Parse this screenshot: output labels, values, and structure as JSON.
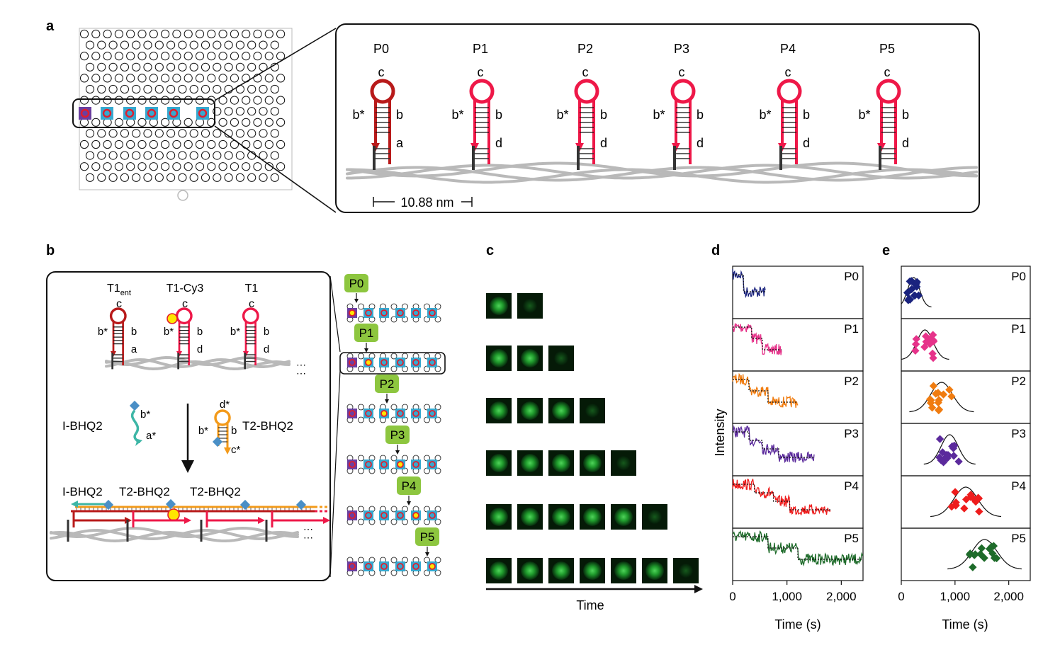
{
  "panel_letters": {
    "a": "a",
    "b": "b",
    "c": "c",
    "d": "d",
    "e": "e"
  },
  "panel_a": {
    "positions": [
      "P0",
      "P1",
      "P2",
      "P3",
      "P4",
      "P5"
    ],
    "loop_label": "c",
    "stem_left": "b*",
    "stem_right": "b",
    "tail_labels": [
      "a",
      "d",
      "d",
      "d",
      "d",
      "d"
    ],
    "scale_label": "10.88 nm"
  },
  "panel_b": {
    "hairpin_names": [
      "T1",
      "T1-Cy3",
      "T1"
    ],
    "hairpin_name_sub": "ent",
    "loop_label": "c",
    "stem_left": "b*",
    "stem_right": "b",
    "tails": [
      "a",
      "d",
      "d"
    ],
    "ellipsis": "⋯",
    "i_bhq2": {
      "name": "I-BHQ2",
      "top": "b*",
      "bottom": "a*"
    },
    "t2_bhq2": {
      "name": "T2-BHQ2",
      "loop": "d*",
      "left": "b*",
      "right": "b",
      "bottom": "c*"
    },
    "product_labels": [
      "I-BHQ2",
      "T2-BHQ2",
      "T2-BHQ2"
    ],
    "lattice_tags": [
      "P0",
      "P1",
      "P2",
      "P3",
      "P4",
      "P5"
    ]
  },
  "panel_c": {
    "time_label": "Time",
    "frames_per_row": [
      2,
      3,
      4,
      5,
      6,
      7
    ]
  },
  "panel_d": {
    "ylabel": "Intensity",
    "xlabel": "Time (s)",
    "ticks": [
      "0",
      "1,000",
      "2,000"
    ],
    "labels": [
      "P0",
      "P1",
      "P2",
      "P3",
      "P4",
      "P5"
    ],
    "colors": [
      "#1a237e",
      "#e6338a",
      "#f07c10",
      "#5b2a9c",
      "#ee1c1c",
      "#1e6b2a"
    ]
  },
  "panel_e": {
    "xlabel": "Time (s)",
    "ticks": [
      "0",
      "1,000",
      "2,000"
    ],
    "labels": [
      "P0",
      "P1",
      "P2",
      "P3",
      "P4",
      "P5"
    ],
    "colors": [
      "#1a237e",
      "#e6338a",
      "#f07c10",
      "#5b2a9c",
      "#ee1c1c",
      "#1e6b2a"
    ],
    "means_s": [
      230,
      440,
      750,
      900,
      1200,
      1550
    ]
  }
}
